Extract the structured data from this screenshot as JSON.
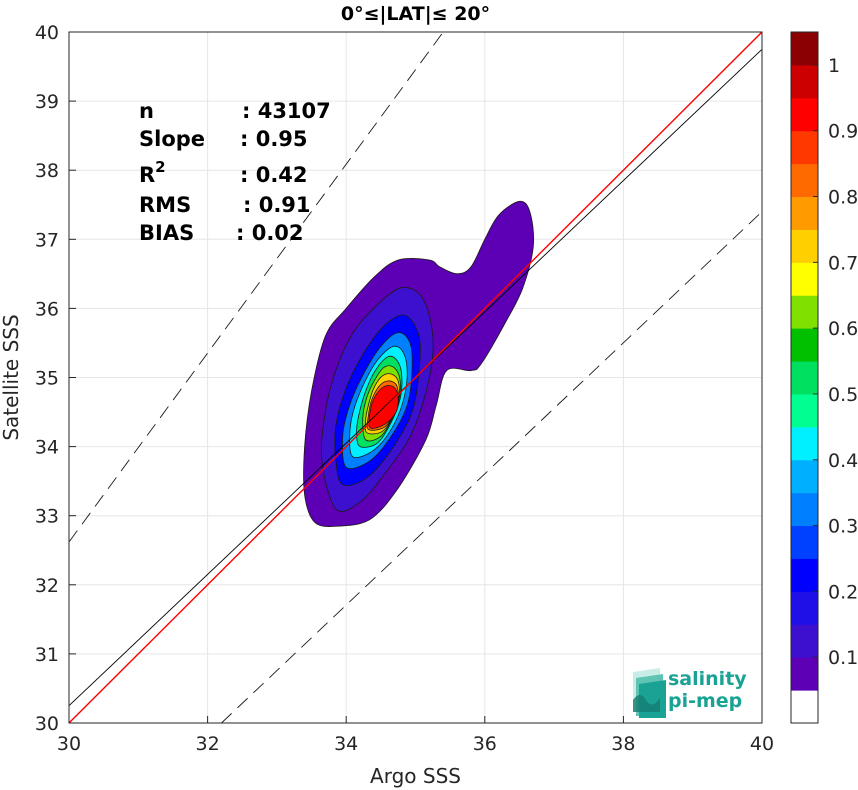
{
  "chart_data": {
    "type": "heatmap",
    "title": "0°≤|LAT|≤ 20°",
    "xlabel": "Argo SSS",
    "ylabel": "Satellite SSS",
    "xlim": [
      30,
      40
    ],
    "ylim": [
      30,
      40
    ],
    "xticks": [
      "30",
      "32",
      "34",
      "36",
      "38",
      "40"
    ],
    "yticks": [
      "30",
      "31",
      "32",
      "33",
      "34",
      "35",
      "36",
      "37",
      "38",
      "39",
      "40"
    ],
    "grid": true,
    "stats": [
      {
        "label": "n",
        "value": ": 43107"
      },
      {
        "label": "Slope",
        "value": ": 0.95"
      },
      {
        "label": "R",
        "sup": "2",
        "value": ": 0.42"
      },
      {
        "label": "RMS",
        "value": ": 0.91"
      },
      {
        "label": "BIAS",
        "value": ": 0.02"
      }
    ],
    "reference_lines": {
      "one_to_one": {
        "x": [
          30,
          40
        ],
        "y": [
          30,
          40
        ],
        "color": "#ff0000"
      },
      "regression": {
        "x": [
          30,
          40
        ],
        "y": [
          30.25,
          39.75
        ],
        "color": "#000000"
      },
      "upper_bound": {
        "x": [
          30,
          35.4
        ],
        "y": [
          32.62,
          40
        ]
      },
      "lower_bound": {
        "x": [
          32.2,
          40
        ],
        "y": [
          30,
          37.4
        ]
      }
    },
    "density_levels": [
      0.05,
      0.1,
      0.15,
      0.2,
      0.25,
      0.3,
      0.35,
      0.4,
      0.45,
      0.5,
      0.55,
      0.6,
      0.65,
      0.7,
      0.75,
      0.8,
      0.85,
      0.9,
      0.95,
      1.0
    ],
    "density_contours": [
      {
        "level": 0.05,
        "points": [
          [
            33.55,
            32.9
          ],
          [
            33.9,
            32.85
          ],
          [
            34.35,
            32.95
          ],
          [
            34.75,
            33.4
          ],
          [
            35.15,
            34.1
          ],
          [
            35.3,
            34.6
          ],
          [
            35.45,
            35.1
          ],
          [
            35.8,
            35.1
          ],
          [
            35.95,
            35.2
          ],
          [
            36.3,
            35.8
          ],
          [
            36.55,
            36.3
          ],
          [
            36.7,
            36.9
          ],
          [
            36.65,
            37.4
          ],
          [
            36.5,
            37.55
          ],
          [
            36.2,
            37.35
          ],
          [
            36.0,
            37.0
          ],
          [
            35.8,
            36.6
          ],
          [
            35.6,
            36.5
          ],
          [
            35.35,
            36.6
          ],
          [
            35.2,
            36.7
          ],
          [
            34.75,
            36.7
          ],
          [
            34.4,
            36.45
          ],
          [
            34.0,
            36.0
          ],
          [
            33.7,
            35.6
          ],
          [
            33.5,
            34.8
          ],
          [
            33.4,
            34.0
          ],
          [
            33.4,
            33.3
          ]
        ]
      },
      {
        "level": 0.1,
        "points": [
          [
            33.85,
            33.1
          ],
          [
            34.2,
            33.2
          ],
          [
            34.55,
            33.6
          ],
          [
            34.95,
            34.2
          ],
          [
            35.2,
            35.0
          ],
          [
            35.25,
            35.6
          ],
          [
            35.1,
            36.15
          ],
          [
            34.8,
            36.3
          ],
          [
            34.45,
            36.05
          ],
          [
            34.1,
            35.65
          ],
          [
            33.85,
            35.1
          ],
          [
            33.7,
            34.5
          ],
          [
            33.65,
            33.8
          ]
        ]
      },
      {
        "level": 0.2,
        "points": [
          [
            33.95,
            33.45
          ],
          [
            34.3,
            33.55
          ],
          [
            34.65,
            33.95
          ],
          [
            34.95,
            34.5
          ],
          [
            35.05,
            35.1
          ],
          [
            35.05,
            35.6
          ],
          [
            34.85,
            35.9
          ],
          [
            34.55,
            35.75
          ],
          [
            34.25,
            35.35
          ],
          [
            34.0,
            34.85
          ],
          [
            33.85,
            34.3
          ],
          [
            33.85,
            33.8
          ]
        ]
      },
      {
        "level": 0.3,
        "points": [
          [
            34.0,
            33.7
          ],
          [
            34.35,
            33.8
          ],
          [
            34.65,
            34.15
          ],
          [
            34.88,
            34.6
          ],
          [
            34.95,
            35.1
          ],
          [
            34.92,
            35.5
          ],
          [
            34.75,
            35.65
          ],
          [
            34.5,
            35.45
          ],
          [
            34.25,
            35.05
          ],
          [
            34.05,
            34.6
          ],
          [
            33.95,
            34.15
          ]
        ]
      },
      {
        "level": 0.4,
        "points": [
          [
            34.1,
            33.85
          ],
          [
            34.4,
            33.95
          ],
          [
            34.65,
            34.25
          ],
          [
            34.82,
            34.65
          ],
          [
            34.88,
            35.05
          ],
          [
            34.83,
            35.35
          ],
          [
            34.68,
            35.45
          ],
          [
            34.45,
            35.25
          ],
          [
            34.25,
            34.9
          ],
          [
            34.1,
            34.5
          ],
          [
            34.05,
            34.15
          ]
        ]
      },
      {
        "level": 0.5,
        "points": [
          [
            34.2,
            34.0
          ],
          [
            34.45,
            34.05
          ],
          [
            34.65,
            34.35
          ],
          [
            34.78,
            34.7
          ],
          [
            34.8,
            35.05
          ],
          [
            34.73,
            35.25
          ],
          [
            34.6,
            35.3
          ],
          [
            34.42,
            35.1
          ],
          [
            34.28,
            34.8
          ],
          [
            34.18,
            34.45
          ],
          [
            34.15,
            34.2
          ]
        ]
      },
      {
        "level": 0.6,
        "points": [
          [
            34.28,
            34.1
          ],
          [
            34.5,
            34.15
          ],
          [
            34.67,
            34.42
          ],
          [
            34.77,
            34.72
          ],
          [
            34.77,
            35.0
          ],
          [
            34.68,
            35.15
          ],
          [
            34.55,
            35.15
          ],
          [
            34.42,
            34.98
          ],
          [
            34.3,
            34.72
          ],
          [
            34.24,
            34.42
          ]
        ]
      },
      {
        "level": 0.7,
        "points": [
          [
            34.3,
            34.2
          ],
          [
            34.52,
            34.22
          ],
          [
            34.68,
            34.45
          ],
          [
            34.76,
            34.72
          ],
          [
            34.75,
            34.95
          ],
          [
            34.65,
            35.05
          ],
          [
            34.52,
            35.02
          ],
          [
            34.4,
            34.85
          ],
          [
            34.32,
            34.6
          ],
          [
            34.28,
            34.38
          ]
        ]
      },
      {
        "level": 0.8,
        "points": [
          [
            34.32,
            34.25
          ],
          [
            34.55,
            34.28
          ],
          [
            34.7,
            34.5
          ],
          [
            34.75,
            34.72
          ],
          [
            34.72,
            34.9
          ],
          [
            34.6,
            34.95
          ],
          [
            34.48,
            34.88
          ],
          [
            34.37,
            34.68
          ],
          [
            34.32,
            34.45
          ]
        ]
      },
      {
        "level": 0.9,
        "points": [
          [
            34.34,
            34.28
          ],
          [
            34.55,
            34.32
          ],
          [
            34.72,
            34.5
          ],
          [
            34.75,
            34.7
          ],
          [
            34.7,
            34.85
          ],
          [
            34.58,
            34.88
          ],
          [
            34.45,
            34.78
          ],
          [
            34.36,
            34.58
          ]
        ]
      }
    ],
    "colorbar": {
      "ticks": [
        "0.1",
        "0.2",
        "0.3",
        "0.4",
        "0.5",
        "0.6",
        "0.7",
        "0.8",
        "0.9",
        "1"
      ],
      "colors": [
        "#ffffff",
        "#5d00b5",
        "#3d10d0",
        "#2010e8",
        "#0000ff",
        "#0040ff",
        "#0080ff",
        "#00b0ff",
        "#00f0ff",
        "#00ff90",
        "#00e060",
        "#00c000",
        "#80e000",
        "#ffff00",
        "#ffd000",
        "#ff9a00",
        "#ff6a00",
        "#ff3800",
        "#ff0000",
        "#cc0000",
        "#8b0000"
      ]
    },
    "logo": {
      "line1": "salinity",
      "line2": "pi-mep"
    }
  }
}
